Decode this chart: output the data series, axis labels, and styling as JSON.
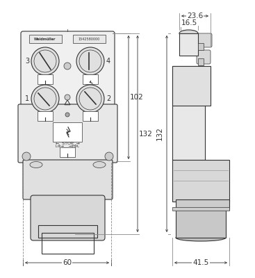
{
  "bg_color": "#ffffff",
  "line_color": "#333333",
  "dim_color": "#333333",
  "light_gray": "#cccccc",
  "mid_gray": "#999999",
  "dark_gray": "#555555",
  "title": "",
  "dims": {
    "width_60": "60",
    "height_102": "102",
    "height_132": "132",
    "width_23_6": "23.6",
    "width_16_5": "16.5",
    "width_41_5": "41.5"
  }
}
